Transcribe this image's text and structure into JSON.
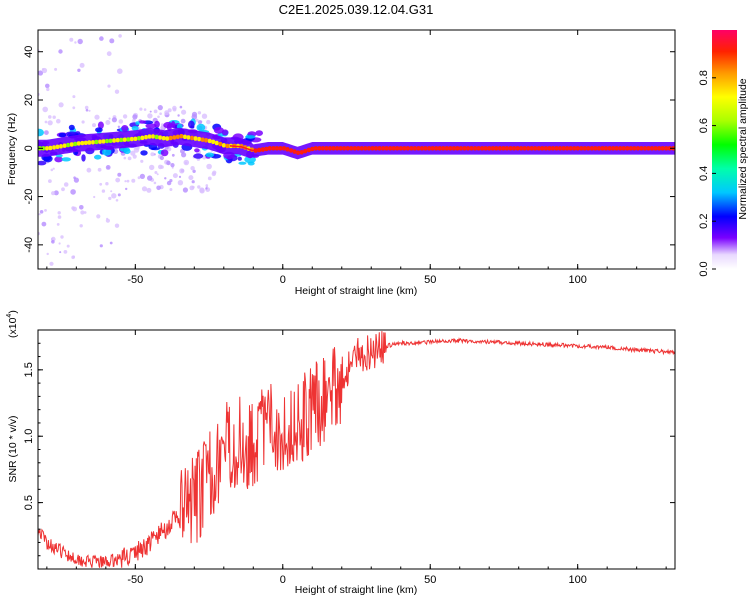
{
  "title": "C2E1.2025.039.12.04.G31",
  "chart_data": [
    {
      "type": "heatmap",
      "xlabel": "Height of straight line (km)",
      "ylabel": "Frequency (Hz)",
      "xlim": [
        -83,
        133
      ],
      "ylim": [
        -50,
        49
      ],
      "xticks": [
        -50,
        0,
        50,
        100
      ],
      "yticks": [
        -40,
        -20,
        0,
        20,
        40
      ],
      "colorbar": {
        "label": "Normalized spectral amplitude",
        "range": [
          0,
          1
        ],
        "ticks": [
          "0.0",
          "0.2",
          "0.4",
          "0.6",
          "0.8"
        ]
      },
      "dominant_frequency_track": {
        "x": [
          -80,
          -70,
          -60,
          -50,
          -45,
          -40,
          -35,
          -30,
          -25,
          -20,
          -15,
          -10,
          -5,
          0,
          5,
          10,
          15,
          20,
          30,
          50,
          100,
          133
        ],
        "y": [
          0,
          2,
          3,
          4,
          5,
          4,
          5,
          4,
          3,
          1,
          1,
          -1,
          0,
          0,
          -2,
          0,
          0,
          0,
          0,
          0,
          0,
          0
        ]
      }
    },
    {
      "type": "line",
      "xlabel": "Height of straight line (km)",
      "ylabel": "SNR (10 * v/v)",
      "yscale_note": "(x10",
      "yscale_exp": "4",
      "xlim": [
        -83,
        133
      ],
      "ylim": [
        0,
        1.8
      ],
      "xticks": [
        -50,
        0,
        50,
        100
      ],
      "yticks": [
        "0.5",
        "1.0",
        "1.5"
      ],
      "color": "#ee3333",
      "series": [
        {
          "x": [
            -83,
            -80,
            -75,
            -70,
            -65,
            -60,
            -55,
            -50,
            -45,
            -40,
            -35,
            -30,
            -25,
            -20,
            -15,
            -10,
            -5,
            0,
            5,
            10,
            15,
            20,
            25,
            30,
            35,
            40,
            50,
            60,
            70,
            80,
            90,
            100,
            110,
            120,
            133
          ],
          "y": [
            0.3,
            0.2,
            0.13,
            0.08,
            0.05,
            0.05,
            0.08,
            0.12,
            0.2,
            0.3,
            0.4,
            0.5,
            0.7,
            0.9,
            0.95,
            0.95,
            1.1,
            1.05,
            1.1,
            1.2,
            1.3,
            1.45,
            1.6,
            1.65,
            1.68,
            1.7,
            1.71,
            1.72,
            1.71,
            1.7,
            1.69,
            1.68,
            1.67,
            1.65,
            1.63
          ]
        }
      ]
    }
  ]
}
